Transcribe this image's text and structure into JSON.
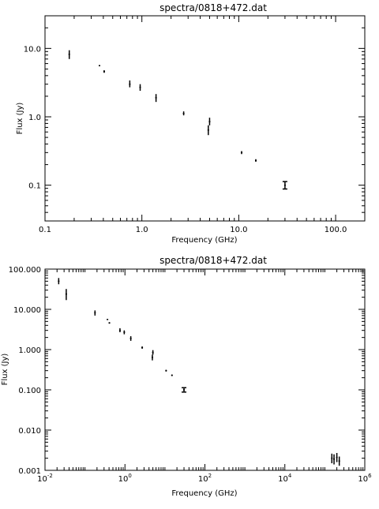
{
  "chart_data": [
    {
      "type": "scatter",
      "title": "spectra/0818+472.dat",
      "xlabel": "Frequency (GHz)",
      "ylabel": "Flux (Jy)",
      "xscale": "log",
      "yscale": "log",
      "xlim": [
        0.1,
        200
      ],
      "ylim": [
        0.03,
        30
      ],
      "x_tick_labels": [
        {
          "value": 0.1,
          "label": "0.1"
        },
        {
          "value": 1,
          "label": "1.0"
        },
        {
          "value": 10,
          "label": "10.0"
        },
        {
          "value": 100,
          "label": "100.0"
        }
      ],
      "y_tick_labels": [
        {
          "value": 0.1,
          "label": "0.1"
        },
        {
          "value": 1,
          "label": "1.0"
        },
        {
          "value": 10,
          "label": "10.0"
        }
      ],
      "points": [
        {
          "x": 0.178,
          "y": 8.2,
          "ylo": 7.0,
          "yhi": 9.4
        },
        {
          "x": 0.365,
          "y": 5.6,
          "ylo": 5.5,
          "yhi": 5.7
        },
        {
          "x": 0.408,
          "y": 4.6,
          "ylo": 4.4,
          "yhi": 4.8
        },
        {
          "x": 0.75,
          "y": 3.0,
          "ylo": 2.7,
          "yhi": 3.4
        },
        {
          "x": 0.96,
          "y": 2.7,
          "ylo": 2.4,
          "yhi": 3.0
        },
        {
          "x": 1.4,
          "y": 1.9,
          "ylo": 1.65,
          "yhi": 2.15
        },
        {
          "x": 2.7,
          "y": 1.12,
          "ylo": 1.05,
          "yhi": 1.2
        },
        {
          "x": 4.85,
          "y": 0.64,
          "ylo": 0.54,
          "yhi": 0.75
        },
        {
          "x": 5.0,
          "y": 0.85,
          "ylo": 0.75,
          "yhi": 0.97
        },
        {
          "x": 10.7,
          "y": 0.3,
          "ylo": 0.285,
          "yhi": 0.315
        },
        {
          "x": 15.0,
          "y": 0.23,
          "ylo": 0.22,
          "yhi": 0.24
        },
        {
          "x": 30.0,
          "y": 0.1,
          "ylo": 0.088,
          "yhi": 0.113,
          "capped": true
        }
      ]
    },
    {
      "type": "scatter",
      "title": "spectra/0818+472.dat",
      "xlabel": "Frequency (GHz)",
      "ylabel": "Flux (Jy)",
      "xscale": "log",
      "yscale": "log",
      "xlim": [
        0.01,
        1000000
      ],
      "ylim": [
        0.001,
        100
      ],
      "x_tick_labels": [
        {
          "value": 0.01,
          "label": "10",
          "sup": "-2"
        },
        {
          "value": 1,
          "label": "10",
          "sup": "0"
        },
        {
          "value": 100,
          "label": "10",
          "sup": "2"
        },
        {
          "value": 10000,
          "label": "10",
          "sup": "4"
        },
        {
          "value": 1000000,
          "label": "10",
          "sup": "6"
        }
      ],
      "y_tick_labels": [
        {
          "value": 0.001,
          "label": "0.001"
        },
        {
          "value": 0.01,
          "label": "0.010"
        },
        {
          "value": 0.1,
          "label": "0.100"
        },
        {
          "value": 1,
          "label": "1.000"
        },
        {
          "value": 10,
          "label": "10.000"
        },
        {
          "value": 100,
          "label": "100.000"
        }
      ],
      "points": [
        {
          "x": 0.022,
          "y": 50,
          "ylo": 42,
          "yhi": 60
        },
        {
          "x": 0.034,
          "y": 24,
          "ylo": 17,
          "yhi": 32
        },
        {
          "x": 0.178,
          "y": 8.2,
          "ylo": 7.0,
          "yhi": 9.4
        },
        {
          "x": 0.365,
          "y": 5.6,
          "ylo": 5.5,
          "yhi": 5.7
        },
        {
          "x": 0.408,
          "y": 4.6,
          "ylo": 4.4,
          "yhi": 4.8
        },
        {
          "x": 0.75,
          "y": 3.0,
          "ylo": 2.7,
          "yhi": 3.4
        },
        {
          "x": 0.96,
          "y": 2.7,
          "ylo": 2.4,
          "yhi": 3.0
        },
        {
          "x": 1.4,
          "y": 1.9,
          "ylo": 1.65,
          "yhi": 2.15
        },
        {
          "x": 2.7,
          "y": 1.12,
          "ylo": 1.05,
          "yhi": 1.2
        },
        {
          "x": 4.85,
          "y": 0.64,
          "ylo": 0.54,
          "yhi": 0.75
        },
        {
          "x": 5.0,
          "y": 0.85,
          "ylo": 0.75,
          "yhi": 0.97
        },
        {
          "x": 10.7,
          "y": 0.3,
          "ylo": 0.285,
          "yhi": 0.315
        },
        {
          "x": 15.0,
          "y": 0.23,
          "ylo": 0.22,
          "yhi": 0.24
        },
        {
          "x": 30.0,
          "y": 0.1,
          "ylo": 0.088,
          "yhi": 0.113,
          "capped": true
        },
        {
          "x": 150000,
          "y": 0.002,
          "ylo": 0.0015,
          "yhi": 0.0026
        },
        {
          "x": 170000,
          "y": 0.0019,
          "ylo": 0.0014,
          "yhi": 0.0025
        },
        {
          "x": 200000,
          "y": 0.0021,
          "ylo": 0.0016,
          "yhi": 0.0027
        },
        {
          "x": 230000,
          "y": 0.0017,
          "ylo": 0.0013,
          "yhi": 0.0022
        }
      ]
    }
  ]
}
